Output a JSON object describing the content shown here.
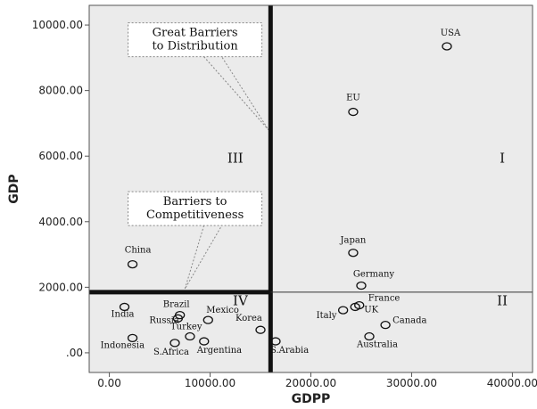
{
  "chart_data": {
    "type": "scatter",
    "xlabel": "GDPP",
    "ylabel": "GDP",
    "xlim": [
      -2000,
      42000
    ],
    "ylim": [
      -600,
      10600
    ],
    "x_ticks": [
      0,
      10000,
      20000,
      30000,
      40000
    ],
    "x_tick_labels": [
      "0.00",
      "10000.00",
      "20000.00",
      "30000.00",
      "40000.00"
    ],
    "y_ticks": [
      0,
      2000,
      4000,
      6000,
      8000,
      10000
    ],
    "y_tick_labels": [
      ".00",
      "2000.00",
      "4000.00",
      "6000.00",
      "8000.00",
      "10000.00"
    ],
    "grid": false,
    "points": [
      {
        "label": "USA",
        "x": 33500,
        "y": 9350
      },
      {
        "label": "EU",
        "x": 24200,
        "y": 7350
      },
      {
        "label": "Japan",
        "x": 24200,
        "y": 3050
      },
      {
        "label": "Germany",
        "x": 25000,
        "y": 2050
      },
      {
        "label": "China",
        "x": 2300,
        "y": 2700
      },
      {
        "label": "India",
        "x": 1500,
        "y": 1400
      },
      {
        "label": "Brazil",
        "x": 7000,
        "y": 1150
      },
      {
        "label": "Russia",
        "x": 6800,
        "y": 1050
      },
      {
        "label": "Mexico",
        "x": 9800,
        "y": 1000
      },
      {
        "label": "Korea",
        "x": 15000,
        "y": 700
      },
      {
        "label": "Turkey",
        "x": 8000,
        "y": 500
      },
      {
        "label": "Indonesia",
        "x": 2300,
        "y": 450
      },
      {
        "label": "S.Africa",
        "x": 6500,
        "y": 300
      },
      {
        "label": "Argentina",
        "x": 9400,
        "y": 350
      },
      {
        "label": "S.Arabia",
        "x": 16500,
        "y": 350
      },
      {
        "label": "Italy",
        "x": 23200,
        "y": 1300
      },
      {
        "label": "UK",
        "x": 24400,
        "y": 1400
      },
      {
        "label": "France",
        "x": 24800,
        "y": 1450
      },
      {
        "label": "Canada",
        "x": 27400,
        "y": 850
      },
      {
        "label": "Australia",
        "x": 25800,
        "y": 500
      }
    ],
    "divider_x": 16000,
    "divider_y": 1850,
    "quadrants": [
      {
        "label": "I",
        "x": 39000,
        "y": 5800
      },
      {
        "label": "II",
        "x": 39000,
        "y": 1450
      },
      {
        "label": "III",
        "x": 12500,
        "y": 5800
      },
      {
        "label": "IV",
        "x": 13000,
        "y": 1450
      }
    ],
    "callouts": [
      {
        "lines": [
          "Great Barriers",
          "to Distribution"
        ],
        "center_x": 8500,
        "center_y": 9550,
        "target_x": 15800,
        "target_y": 6800
      },
      {
        "lines": [
          "Barriers to",
          "Competitiveness"
        ],
        "center_x": 8500,
        "center_y": 4400,
        "target_x": 7500,
        "target_y": 1950
      }
    ]
  }
}
